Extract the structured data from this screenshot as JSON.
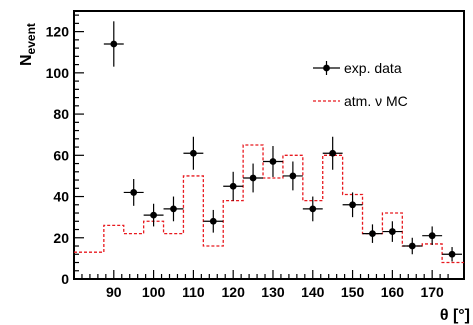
{
  "chart_data": {
    "type": "scatter",
    "xlabel": "θ [°]",
    "ylabel_main": "N",
    "ylabel_sub": "event",
    "xlim": [
      80,
      178
    ],
    "ylim": [
      0,
      130
    ],
    "x_ticks": [
      90,
      100,
      110,
      120,
      130,
      140,
      150,
      160,
      170
    ],
    "y_ticks": [
      0,
      20,
      40,
      60,
      80,
      100,
      120
    ],
    "legend_position": "top-right",
    "series": [
      {
        "name": "exp. data",
        "style": "points-with-errorbars",
        "color": "#000000",
        "x": [
          90,
          95,
          100,
          105,
          110,
          115,
          120,
          125,
          130,
          135,
          140,
          145,
          150,
          155,
          160,
          165,
          170,
          175
        ],
        "y": [
          114,
          42,
          31,
          34,
          61,
          28,
          45,
          49,
          57,
          50,
          34,
          61,
          36,
          22,
          23,
          16,
          21,
          12
        ],
        "y_err": [
          11,
          6.5,
          5.5,
          6,
          8,
          5.5,
          7,
          7,
          7.5,
          7,
          6,
          8,
          6,
          4.5,
          5,
          4,
          4.5,
          3.5
        ],
        "x_err": 2.5
      },
      {
        "name": "atm. ν MC",
        "style": "dashed-step",
        "color": "#e8191f",
        "bin_edges": [
          80,
          87.5,
          92.5,
          97.5,
          102.5,
          107.5,
          112.5,
          117.5,
          122.5,
          127.5,
          132.5,
          137.5,
          142.5,
          147.5,
          152.5,
          157.5,
          162.5,
          167.5,
          172.5,
          178
        ],
        "values": [
          13,
          26,
          22,
          28,
          22,
          50,
          16,
          38,
          65,
          49,
          60,
          38,
          60,
          41,
          22,
          32,
          16,
          17,
          8
        ]
      }
    ]
  }
}
